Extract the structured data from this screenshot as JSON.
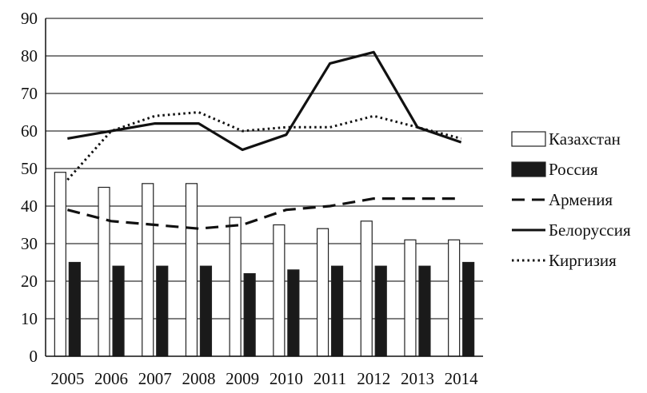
{
  "chart_data": {
    "type": "bar",
    "categories": [
      "2005",
      "2006",
      "2007",
      "2008",
      "2009",
      "2010",
      "2011",
      "2012",
      "2013",
      "2014"
    ],
    "ylim": [
      0,
      90
    ],
    "yticks": [
      "0",
      "10",
      "20",
      "30",
      "40",
      "50",
      "60",
      "70",
      "80",
      "90"
    ],
    "grid": "horizontal",
    "legend_position": "right",
    "series": [
      {
        "name": "Казахстан",
        "kind": "bar",
        "style": "hollow",
        "color": "#ffffff",
        "values": [
          49,
          45,
          46,
          46,
          37,
          35,
          34,
          36,
          31,
          31
        ]
      },
      {
        "name": "Россия",
        "kind": "bar",
        "style": "filled",
        "color": "#1a1a1a",
        "values": [
          25,
          24,
          24,
          24,
          22,
          23,
          24,
          24,
          24,
          25
        ]
      },
      {
        "name": "Армения",
        "kind": "line",
        "style": "dashed",
        "color": "#111111",
        "values": [
          39,
          36,
          35,
          34,
          35,
          39,
          40,
          42,
          42,
          42
        ]
      },
      {
        "name": "Белоруссия",
        "kind": "line",
        "style": "solid",
        "color": "#111111",
        "values": [
          58,
          60,
          62,
          62,
          55,
          59,
          78,
          81,
          61,
          57
        ]
      },
      {
        "name": "Киргизия",
        "kind": "line",
        "style": "dotted",
        "color": "#111111",
        "values": [
          47,
          60,
          64,
          65,
          60,
          61,
          61,
          64,
          61,
          58
        ]
      }
    ]
  }
}
